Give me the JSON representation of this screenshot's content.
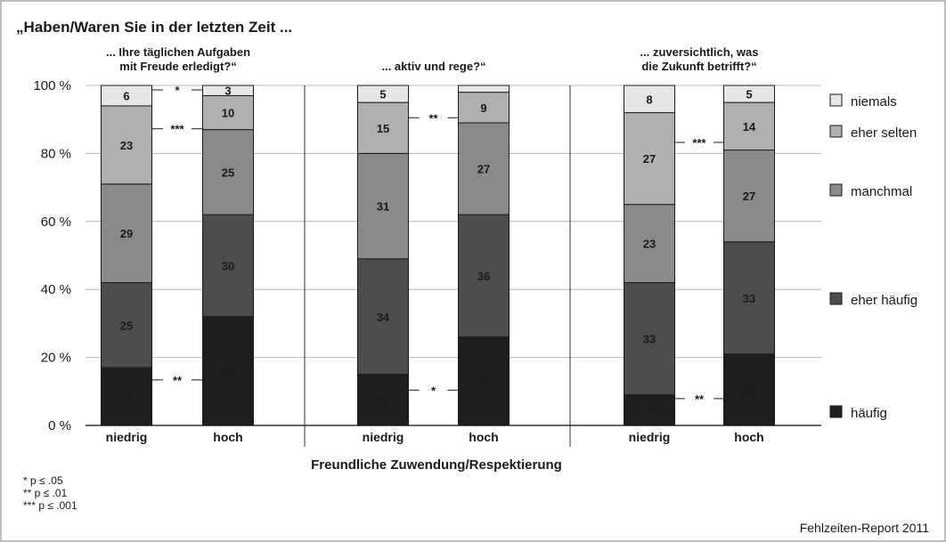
{
  "chart_data": {
    "type": "bar",
    "stacked": true,
    "title": "„Haben/Waren Sie in der letzten Zeit ...",
    "xlabel": "Freundliche Zuwendung/Respektierung",
    "ylabel": "",
    "ylim": [
      0,
      100
    ],
    "yticks": [
      0,
      20,
      40,
      60,
      80,
      100
    ],
    "ytick_labels": [
      "0 %",
      "20 %",
      "40 %",
      "60 %",
      "80 %",
      "100 %"
    ],
    "grid": true,
    "legend_position": "right",
    "categories": [
      "niedrig",
      "hoch"
    ],
    "series": [
      {
        "name": "niemals",
        "color": "#e6e6e6"
      },
      {
        "name": "eher selten",
        "color": "#b0b0b0"
      },
      {
        "name": "manchmal",
        "color": "#8a8a8a"
      },
      {
        "name": "eher häufig",
        "color": "#4c4c4c"
      },
      {
        "name": "häufig",
        "color": "#1e1e1e"
      }
    ],
    "panels": [
      {
        "subtitle": [
          "... Ihre täglichen Aufgaben",
          "mit Freude erledigt?“"
        ],
        "bars": [
          {
            "category": "niedrig",
            "values": {
              "häufig": 17,
              "eher häufig": 25,
              "manchmal": 29,
              "eher selten": 23,
              "niemals": 6
            }
          },
          {
            "category": "hoch",
            "values": {
              "häufig": 32,
              "eher häufig": 30,
              "manchmal": 25,
              "eher selten": 10,
              "niemals": 3
            }
          }
        ],
        "significance": [
          {
            "series": "niemals",
            "mark": "*"
          },
          {
            "series": "eher selten",
            "mark": "***"
          },
          {
            "series": "häufig",
            "mark": "**"
          }
        ]
      },
      {
        "subtitle": [
          "... aktiv und rege?“"
        ],
        "bars": [
          {
            "category": "niedrig",
            "values": {
              "häufig": 15,
              "eher häufig": 34,
              "manchmal": 31,
              "eher selten": 15,
              "niemals": 5
            }
          },
          {
            "category": "hoch",
            "values": {
              "häufig": 26,
              "eher häufig": 36,
              "manchmal": 27,
              "eher selten": 9,
              "niemals": 2
            }
          }
        ],
        "significance": [
          {
            "series": "eher selten",
            "mark": "**"
          },
          {
            "series": "häufig",
            "mark": "*"
          }
        ]
      },
      {
        "subtitle": [
          "... zuversichtlich, was",
          "die Zukunft betrifft?“"
        ],
        "bars": [
          {
            "category": "niedrig",
            "values": {
              "häufig": 9,
              "eher häufig": 33,
              "manchmal": 23,
              "eher selten": 27,
              "niemals": 8
            }
          },
          {
            "category": "hoch",
            "values": {
              "häufig": 21,
              "eher häufig": 33,
              "manchmal": 27,
              "eher selten": 14,
              "niemals": 5
            }
          }
        ],
        "significance": [
          {
            "series": "eher selten",
            "mark": "***"
          },
          {
            "series": "häufig",
            "mark": "**"
          }
        ]
      }
    ]
  },
  "footnotes": [
    "*    p ≤ .05",
    "**   p ≤ .01",
    "***  p ≤ .001"
  ],
  "source": "Fehlzeiten-Report 2011"
}
